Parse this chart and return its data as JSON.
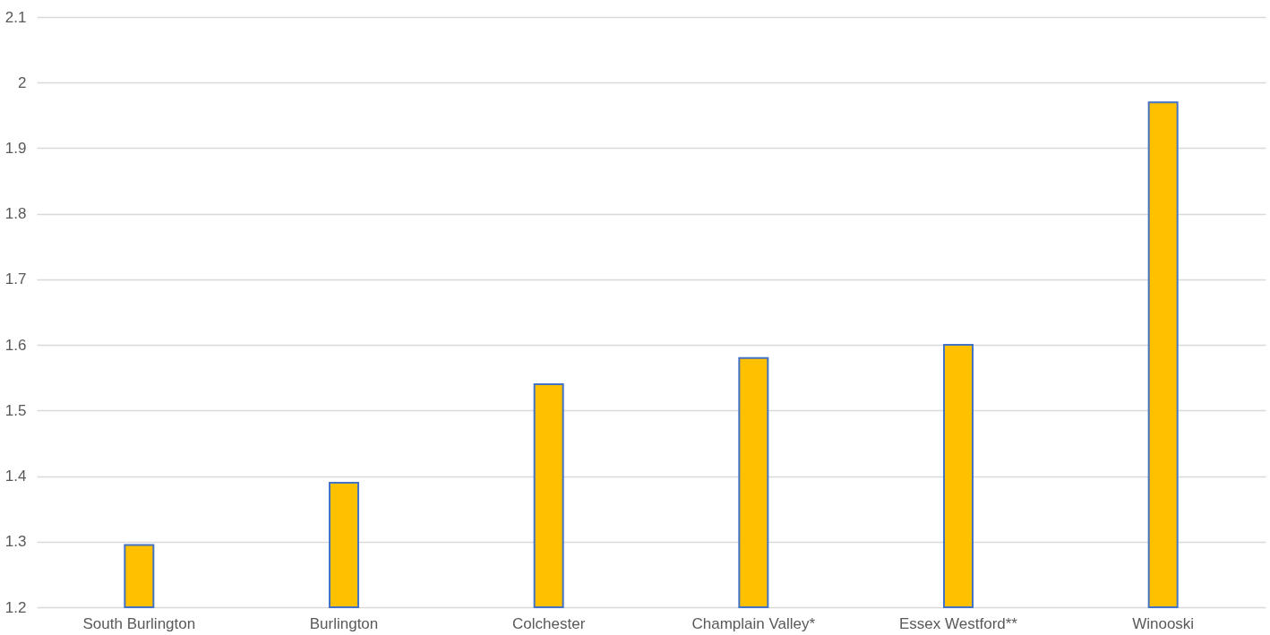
{
  "chart_data": {
    "type": "bar",
    "categories": [
      "South Burlington",
      "Burlington",
      "Colchester",
      "Champlain Valley*",
      "Essex Westford**",
      "Winooski"
    ],
    "values": [
      1.295,
      1.39,
      1.54,
      1.58,
      1.6,
      1.97
    ],
    "color": "#ffc000",
    "ylim": [
      1.2,
      2.1
    ],
    "yticks": [
      1.2,
      1.3,
      1.4,
      1.5,
      1.6,
      1.7,
      1.8,
      1.9,
      {
        "value": 2,
        "label": "2"
      },
      2.1
    ],
    "grid": true
  }
}
